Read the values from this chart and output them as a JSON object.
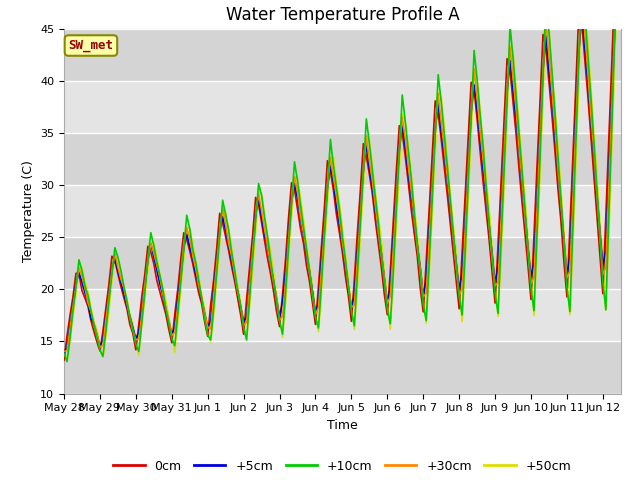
{
  "title": "Water Temperature Profile A",
  "xlabel": "Time",
  "ylabel": "Temperature (C)",
  "ylim": [
    10,
    45
  ],
  "xlim_days": 15.5,
  "background_color": "#ffffff",
  "plot_bg_color": "#e0e0e0",
  "grid_color": "#ffffff",
  "band_colors": [
    "#d8d8d8",
    "#e8e8e8"
  ],
  "line_colors": {
    "0cm": "#dd0000",
    "+5cm": "#0000dd",
    "+10cm": "#00cc00",
    "+30cm": "#ff8800",
    "+50cm": "#dddd00"
  },
  "legend_labels": [
    "0cm",
    "+5cm",
    "+10cm",
    "+30cm",
    "+50cm"
  ],
  "annotation_text": "SW_met",
  "annotation_bg": "#ffffaa",
  "annotation_border": "#888800",
  "tick_labels": [
    "May 28",
    "May 29",
    "May 30",
    "May 31",
    "Jun 1",
    "Jun 2",
    "Jun 3",
    "Jun 4",
    "Jun 5",
    "Jun 6",
    "Jun 7",
    "Jun 8",
    "Jun 9",
    "Jun 10",
    "Jun 11",
    "Jun 12"
  ],
  "title_fontsize": 12,
  "axis_fontsize": 9,
  "tick_fontsize": 8
}
